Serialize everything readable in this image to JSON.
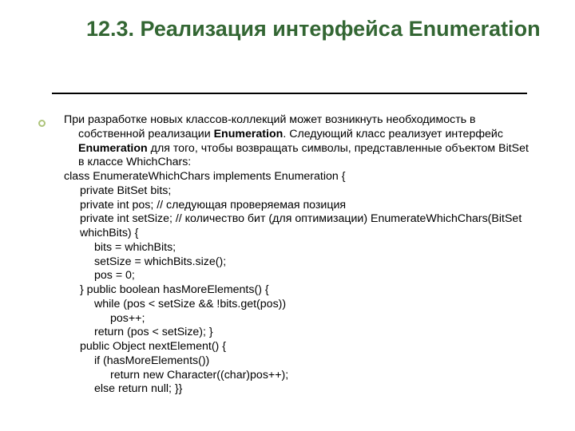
{
  "title": "12.3. Реализация интерфейса Enumeration",
  "intro_parts": {
    "p1": "При разработке новых классов-коллекций может возникнуть необходимость в собственной реализации ",
    "b1": "Enumeration",
    "p2": ". Следующий класс реализует интерфейс ",
    "b2": "Enumeration",
    "p3": " для того, чтобы возвращать символы, представленные объектом BitSet в классе WhichChars:"
  },
  "colors": {
    "title": "#336633",
    "text": "#000000",
    "bullet_border": "#aec47b",
    "background": "#ffffff",
    "rule": "#000000"
  },
  "typography": {
    "title_fontsize": 27,
    "body_fontsize": 14.2,
    "font_family": "Verdana"
  },
  "lines": [
    {
      "indent": "ind0",
      "text": "class EnumerateWhichChars implements Enumeration {"
    },
    {
      "indent": "ind1",
      "text": "private BitSet bits;"
    },
    {
      "indent": "ind1",
      "text": "private int pos;       // следующая проверяемая позиция"
    },
    {
      "indent": "ind1",
      "text": "private int setSize;   // количество бит (для оптимизации)    EnumerateWhichChars(BitSet whichBits) {"
    },
    {
      "indent": "ind2",
      "text": "bits = whichBits;"
    },
    {
      "indent": "ind2",
      "text": "setSize = whichBits.size();"
    },
    {
      "indent": "ind2",
      "text": "pos = 0;"
    },
    {
      "indent": "ind1",
      "text": "}     public boolean hasMoreElements() {"
    },
    {
      "indent": "ind2",
      "text": "while (pos < setSize && !bits.get(pos))"
    },
    {
      "indent": "ind3",
      "text": "pos++;"
    },
    {
      "indent": "ind2",
      "text": "return (pos < setSize);     }"
    },
    {
      "indent": "ind1",
      "text": "public Object nextElement() {"
    },
    {
      "indent": "ind2",
      "text": "if (hasMoreElements())"
    },
    {
      "indent": "ind3",
      "text": "return new Character((char)pos++);"
    },
    {
      "indent": "ind2",
      "text": "else          return null;      }}"
    }
  ]
}
